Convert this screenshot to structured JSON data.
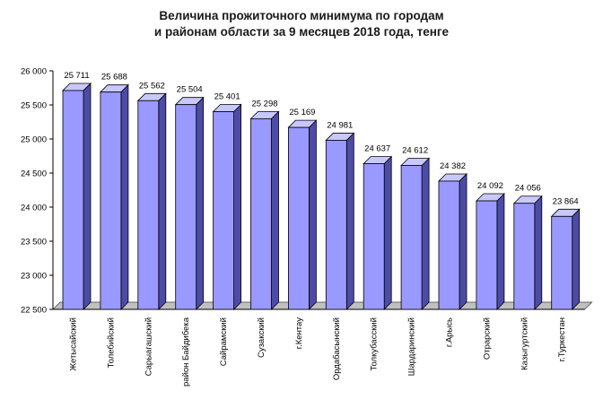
{
  "chart_data": {
    "type": "bar",
    "title_line1": "Величина прожиточного минимума по городам",
    "title_line2": "и районам области за 9 месяцев 2018 года, тенге",
    "categories": [
      "Жетысайский",
      "Толебийский",
      "Сарыагашский",
      "район Байдибека",
      "Сайрамский",
      "Сузакский",
      "г.Кентау",
      "Ордабасынский",
      "Толкубасский",
      "Шардаринский",
      "г.Арысь",
      "Отрарский",
      "Казыгуртский",
      "г.Туркестан"
    ],
    "values": [
      25711,
      25688,
      25562,
      25504,
      25401,
      25298,
      25169,
      24981,
      24637,
      24612,
      24382,
      24092,
      24056,
      23864
    ],
    "value_labels": [
      "25 711",
      "25 688",
      "25 562",
      "25 504",
      "25 401",
      "25 298",
      "25 169",
      "24 981",
      "24 637",
      "24 612",
      "24 382",
      "24 092",
      "24 056",
      "23 864"
    ],
    "yticks": [
      22500,
      23000,
      23500,
      24000,
      24500,
      25000,
      25500,
      26000
    ],
    "ytick_labels": [
      "22 500",
      "23 000",
      "23 500",
      "24 000",
      "24 500",
      "25 000",
      "25 500",
      "26 000"
    ],
    "ylim": [
      22500,
      26000
    ],
    "grid": false,
    "legend": "none",
    "colors": {
      "bar_front": "#9999ff",
      "bar_side": "#4c4ca6",
      "bar_top": "#c8c8ff",
      "outline": "#000000",
      "floor": "#c0c0c0"
    }
  }
}
